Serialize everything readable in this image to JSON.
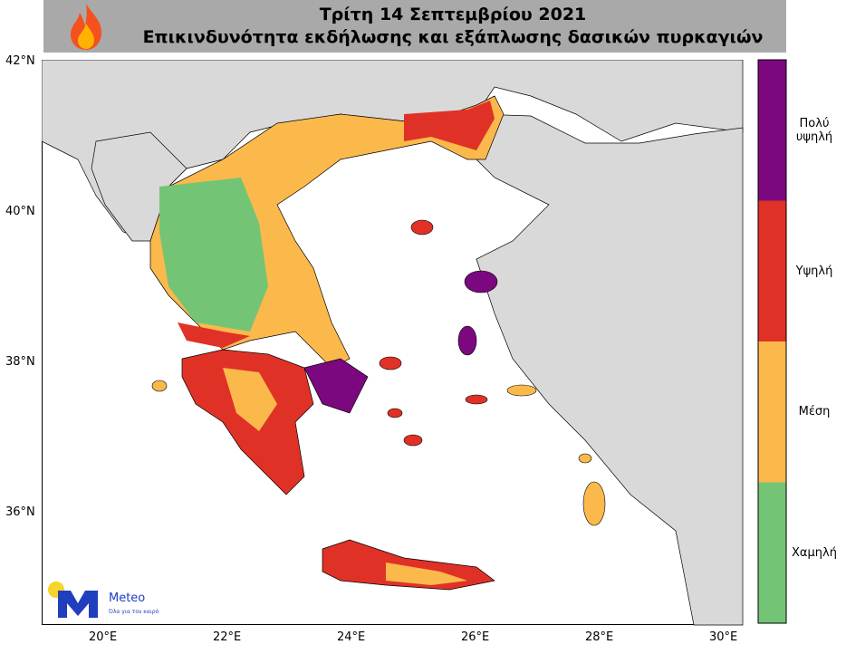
{
  "header": {
    "title": "Τρίτη 14 Σεπτεμβρίου 2021",
    "subtitle": "Επικινδυνότητα εκδήλωσης και εξάπλωσης δασικών πυρκαγιών"
  },
  "axes": {
    "lat_ticks": [
      "42°N",
      "40°N",
      "38°N",
      "36°N"
    ],
    "lon_ticks": [
      "20°E",
      "22°E",
      "24°E",
      "26°E",
      "28°E",
      "30°E"
    ]
  },
  "legend": [
    {
      "label": "Πολύ υψηλή",
      "color": "#7b087e"
    },
    {
      "label": "Υψηλή",
      "color": "#e03127"
    },
    {
      "label": "Μέση",
      "color": "#fbb94c"
    },
    {
      "label": "Χαμηλή",
      "color": "#74c476"
    }
  ],
  "logo": {
    "name": "Meteo",
    "tagline": "Όλα για τον καιρό"
  }
}
